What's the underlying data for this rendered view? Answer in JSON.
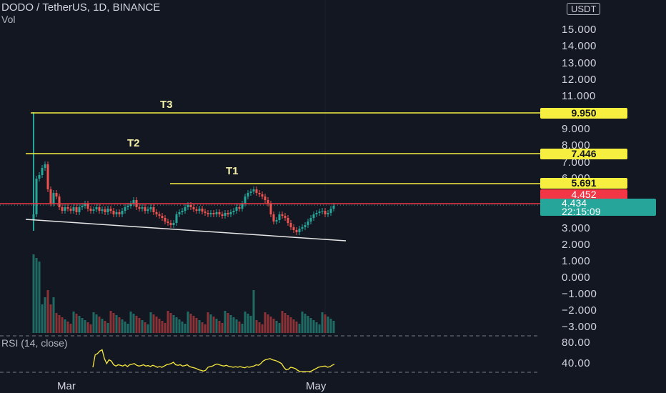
{
  "header": {
    "symbol_line": "DODO / TetherUS, 1D, BINANCE",
    "volume_label": "Vol",
    "currency": "USDT"
  },
  "price_axis": {
    "labels": [
      "15.000",
      "14.000",
      "13.000",
      "12.000",
      "11.000",
      "9.000",
      "8.000",
      "7.000",
      "6.000",
      "3.000",
      "2.000",
      "1.000",
      "0.000",
      "−1.000",
      "−2.000",
      "−3.000"
    ]
  },
  "rsi_axis": {
    "labels": [
      "80.00",
      "40.00"
    ]
  },
  "rsi_legend": "RSI (14, close)",
  "time_axis": {
    "labels": [
      "Mar",
      "May"
    ]
  },
  "targets": [
    {
      "label": "T3",
      "price": "9.950"
    },
    {
      "label": "T2",
      "price": "7.446"
    },
    {
      "label": "T1",
      "price": "5.691"
    }
  ],
  "price_tags": {
    "resistance": "4.452",
    "last_price": "4.434",
    "countdown": "22:15:09"
  },
  "colors": {
    "background": "#131722",
    "up": "#26a69a",
    "down": "#ef5350",
    "target_line": "#f7ef3f",
    "resistance_line": "#f23645",
    "rsi": "#f7e83f",
    "support_line": "#ffffff"
  }
}
